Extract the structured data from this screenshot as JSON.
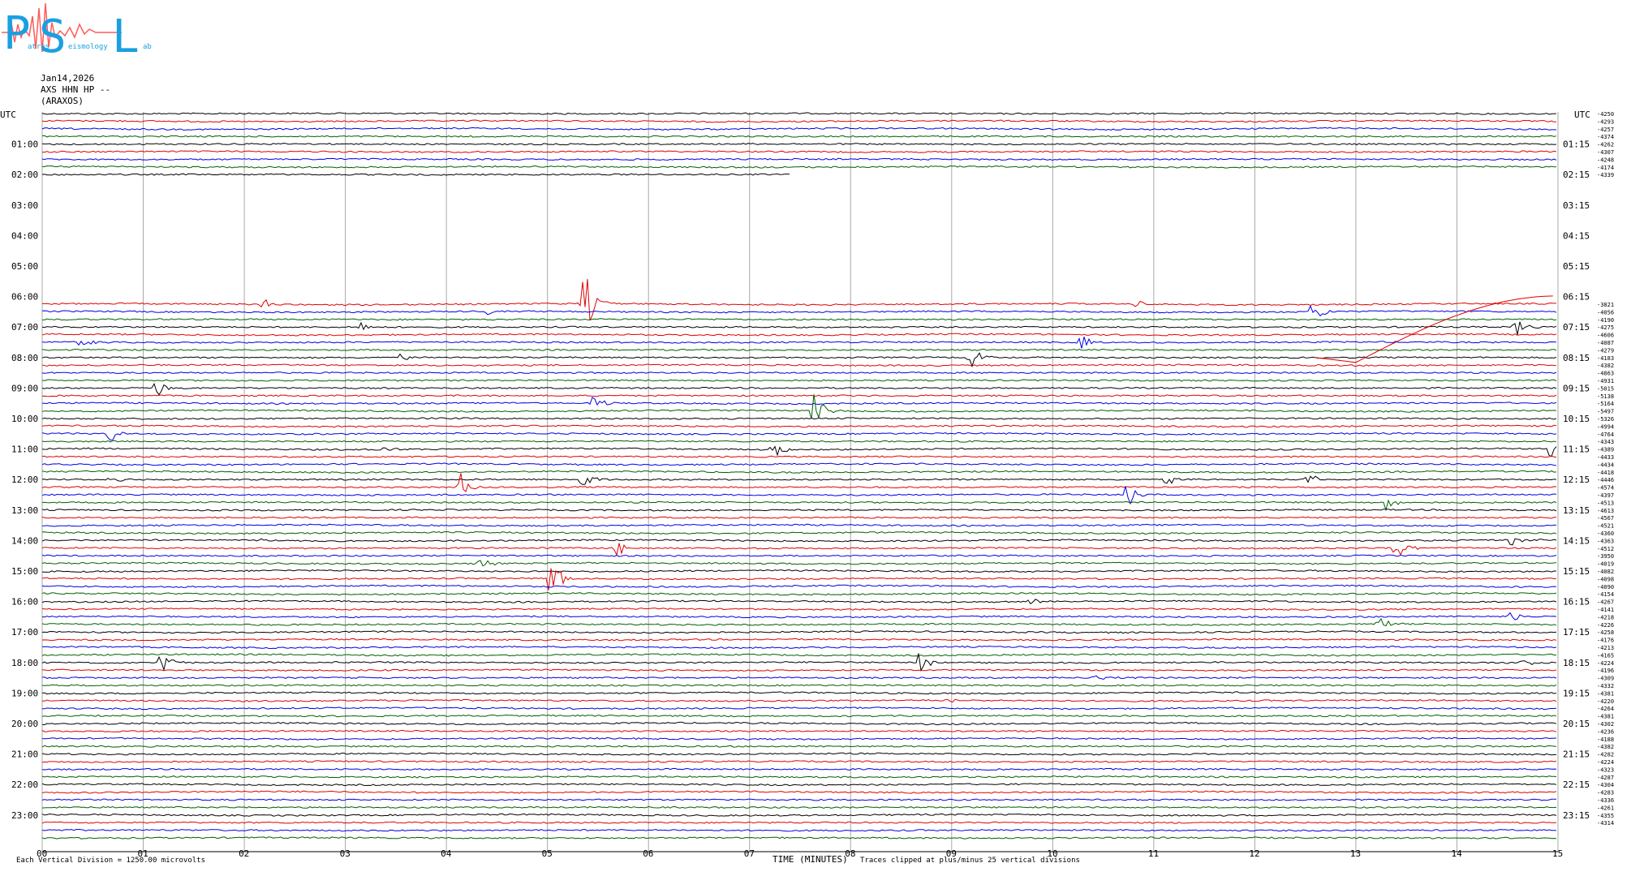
{
  "logo": {
    "letters": [
      "P",
      "S",
      "L"
    ],
    "words": [
      "atras",
      "eismology",
      "ab"
    ]
  },
  "header": {
    "date": "Jan14,2026",
    "channel": "AXS HHN HP --",
    "station": "(ARAXOS)"
  },
  "chart_data": {
    "type": "line",
    "xlabel": "TIME (MINUTES)",
    "ylabel_left": "UTC",
    "ylabel_right": "UTC",
    "xlim": [
      0,
      15
    ],
    "x_ticks": [
      "00",
      "01",
      "02",
      "03",
      "04",
      "05",
      "06",
      "07",
      "08",
      "09",
      "10",
      "11",
      "12",
      "13",
      "14",
      "15"
    ],
    "left_time_labels": [
      "01:00",
      "02:00",
      "03:00",
      "04:00",
      "05:00",
      "06:00",
      "07:00",
      "08:00",
      "09:00",
      "10:00",
      "11:00",
      "12:00",
      "13:00",
      "14:00",
      "15:00",
      "16:00",
      "17:00",
      "18:00",
      "19:00",
      "20:00",
      "21:00",
      "22:00",
      "23:00"
    ],
    "right_time_labels": [
      "01:15",
      "02:15",
      "03:15",
      "04:15",
      "05:15",
      "06:15",
      "07:15",
      "08:15",
      "09:15",
      "10:15",
      "11:15",
      "12:15",
      "13:15",
      "14:15",
      "15:15",
      "16:15",
      "17:15",
      "18:15",
      "19:15",
      "20:15",
      "21:15",
      "22:15",
      "23:15"
    ],
    "trace_colors": [
      "#000000",
      "#e00000",
      "#0000e0",
      "#006000"
    ],
    "row_offsets_top": [
      "-4250",
      "-4293",
      "-4257",
      "-4374",
      "-4262",
      "-4307",
      "-4248",
      "-4174",
      "-4339"
    ],
    "row_offsets_bottom": [
      "-3821",
      "-4056",
      "-4190",
      "-4275",
      "-4606",
      "-4087",
      "-4279",
      "-4183",
      "-4382",
      "-4863",
      "-4931",
      "-5015",
      "-5138",
      "-5164",
      "-5497",
      "-5326",
      "-4994",
      "-4764",
      "-4343",
      "-4389",
      "-4433",
      "-4434",
      "-4418",
      "-4446",
      "-4574",
      "-4397",
      "-4513",
      "-4613",
      "-4567",
      "-4521",
      "-4360",
      "-4363",
      "-4512",
      "-3950",
      "-4019",
      "-4082",
      "-4098",
      "-4090",
      "-4154",
      "-4267",
      "-4141",
      "-4218",
      "-4226",
      "-4258",
      "-4176",
      "-4213",
      "-4165",
      "-4224",
      "-4196",
      "-4309",
      "-4332",
      "-4381",
      "-4220",
      "-4264",
      "-4381",
      "-4302",
      "-4236",
      "-4188",
      "-4382",
      "-4282",
      "-4224",
      "-4323",
      "-4287",
      "-4304",
      "-4283",
      "-4336",
      "-4261",
      "-4355",
      "-4314"
    ],
    "events": [
      {
        "hour": 6.25,
        "minute": 5.35,
        "color": "#0000e0",
        "amp": 58
      },
      {
        "hour": 6.25,
        "minute": 2.2,
        "color": "#0000e0",
        "amp": 6
      },
      {
        "hour": 6.25,
        "minute": 10.85,
        "color": "#0000e0",
        "amp": 5
      },
      {
        "hour": 6.5,
        "minute": 12.6,
        "color": "#006000",
        "amp": 16
      },
      {
        "hour": 6.5,
        "minute": 4.4,
        "color": "#006000",
        "amp": 5
      },
      {
        "hour": 7.0,
        "minute": 3.15,
        "color": "#000000",
        "amp": 8
      },
      {
        "hour": 7.0,
        "minute": 14.6,
        "color": "#000000",
        "amp": 12
      },
      {
        "hour": 7.5,
        "minute": 0.4,
        "color": "#0000e0",
        "amp": 6
      },
      {
        "hour": 7.5,
        "minute": 10.3,
        "color": "#0000e0",
        "amp": 10
      },
      {
        "hour": 8.0,
        "minute": 3.55,
        "color": "#e00000",
        "amp": 6
      },
      {
        "hour": 8.0,
        "minute": 9.2,
        "color": "#e00000",
        "amp": 14
      },
      {
        "hour": 9.0,
        "minute": 1.15,
        "color": "#e00000",
        "amp": 12
      },
      {
        "hour": 9.5,
        "minute": 5.45,
        "color": "#006000",
        "amp": 12
      },
      {
        "hour": 9.75,
        "minute": 7.65,
        "color": "#e00000",
        "amp": 28
      },
      {
        "hour": 10.5,
        "minute": 0.7,
        "color": "#006000",
        "amp": 14
      },
      {
        "hour": 11.0,
        "minute": 3.4,
        "color": "#e00000",
        "amp": 6
      },
      {
        "hour": 11.0,
        "minute": 7.25,
        "color": "#e00000",
        "amp": 10
      },
      {
        "hour": 11.0,
        "minute": 14.95,
        "color": "#000000",
        "amp": 14
      },
      {
        "hour": 12.0,
        "minute": 0.7,
        "color": "#000000",
        "amp": 5
      },
      {
        "hour": 12.0,
        "minute": 5.35,
        "color": "#000000",
        "amp": 12
      },
      {
        "hour": 12.0,
        "minute": 11.15,
        "color": "#000000",
        "amp": 8
      },
      {
        "hour": 12.0,
        "minute": 12.55,
        "color": "#000000",
        "amp": 8
      },
      {
        "hour": 12.25,
        "minute": 4.15,
        "color": "#e00000",
        "amp": 20
      },
      {
        "hour": 12.5,
        "minute": 10.75,
        "color": "#0000e0",
        "amp": 18
      },
      {
        "hour": 12.75,
        "minute": 13.3,
        "color": "#006000",
        "amp": 10
      },
      {
        "hour": 14.0,
        "minute": 2.2,
        "color": "#000000",
        "amp": 5
      },
      {
        "hour": 14.0,
        "minute": 14.55,
        "color": "#006000",
        "amp": 10
      },
      {
        "hour": 14.25,
        "minute": 5.7,
        "color": "#e00000",
        "amp": 10
      },
      {
        "hour": 14.25,
        "minute": 13.4,
        "color": "#e00000",
        "amp": 24
      },
      {
        "hour": 14.75,
        "minute": 4.35,
        "color": "#006000",
        "amp": 7
      },
      {
        "hour": 15.25,
        "minute": 5.05,
        "color": "#e00000",
        "amp": 30
      },
      {
        "hour": 16.0,
        "minute": 9.8,
        "color": "#000000",
        "amp": 5
      },
      {
        "hour": 16.5,
        "minute": 14.55,
        "color": "#0000e0",
        "amp": 7
      },
      {
        "hour": 16.75,
        "minute": 13.25,
        "color": "#006000",
        "amp": 12
      },
      {
        "hour": 18.0,
        "minute": 1.2,
        "color": "#000000",
        "amp": 14
      },
      {
        "hour": 18.0,
        "minute": 8.7,
        "color": "#000000",
        "amp": 16
      },
      {
        "hour": 18.0,
        "minute": 14.65,
        "color": "#000000",
        "amp": 6
      },
      {
        "hour": 18.5,
        "minute": 10.45,
        "color": "#0000e0",
        "amp": 5
      },
      {
        "hour": 19.25,
        "minute": 9.0,
        "color": "#e00000",
        "amp": 5
      }
    ]
  },
  "footer": {
    "scale_note": "Each Vertical Division = 1250.00 microvolts",
    "clip_note": "Traces clipped at plus/minus 25 vertical divisions"
  }
}
